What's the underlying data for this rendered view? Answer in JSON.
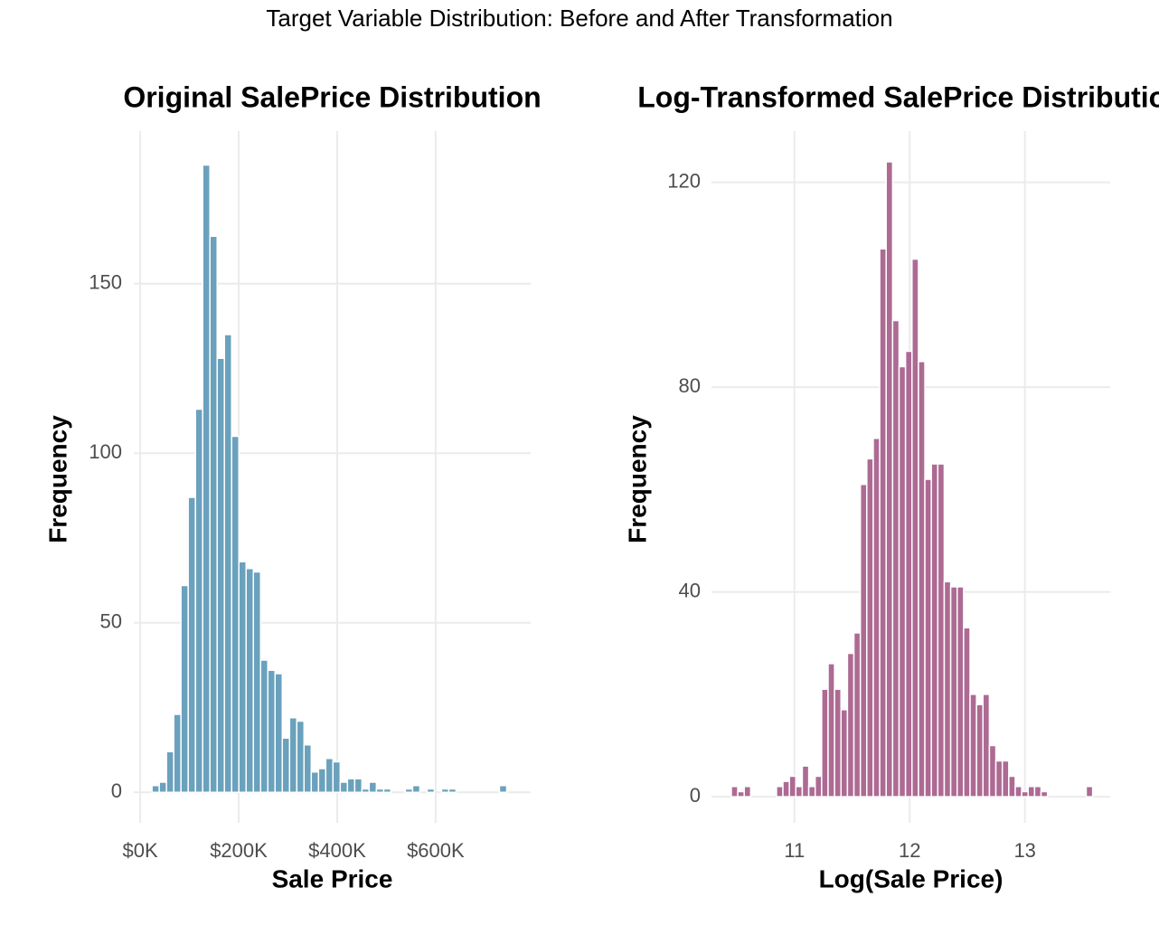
{
  "title": "Target Variable Distribution: Before and After Transformation",
  "chart_data": [
    {
      "type": "histogram",
      "title": "Original SalePrice Distribution",
      "xlabel": "Sale Price",
      "ylabel": "Frequency",
      "color": "#6aa1bd",
      "grid": true,
      "bins": [
        24000,
        38700,
        53400,
        68100,
        82800,
        97500,
        112200,
        126900,
        141600,
        156300,
        171000,
        185700,
        200400,
        215100,
        229800,
        244500,
        259200,
        273900,
        288600,
        303300,
        318000,
        332700,
        347400,
        362100,
        376800,
        391500,
        406200,
        420900,
        435600,
        450300,
        465000,
        479700,
        494400,
        509100,
        523800,
        538500,
        553200,
        567900,
        582600,
        597300,
        612000,
        626700,
        641400,
        656100,
        670800,
        685500,
        700200,
        714900,
        729600,
        744300,
        759000
      ],
      "counts": [
        2,
        3,
        12,
        23,
        61,
        87,
        113,
        185,
        164,
        128,
        135,
        105,
        68,
        66,
        65,
        39,
        36,
        35,
        16,
        22,
        21,
        14,
        6,
        7,
        10,
        9,
        3,
        4,
        4,
        1,
        3,
        1,
        1,
        0,
        0,
        1,
        2,
        0,
        1,
        0,
        1,
        1,
        0,
        0,
        0,
        0,
        0,
        0,
        2,
        0
      ],
      "xlim": [
        -13000,
        793000
      ],
      "xticks": [
        {
          "value": 0,
          "label": "$0K"
        },
        {
          "value": 200000,
          "label": "$200K"
        },
        {
          "value": 400000,
          "label": "$400K"
        },
        {
          "value": 600000,
          "label": "$600K"
        }
      ],
      "ylim": [
        -9,
        195
      ],
      "yticks": [
        0,
        50,
        100,
        150
      ]
    },
    {
      "type": "histogram",
      "title": "Log-Transformed SalePrice Distribution",
      "xlabel": "Log(Sale Price)",
      "ylabel": "Frequency",
      "color": "#ad6a93",
      "grid": true,
      "bins": [
        10.452,
        10.508,
        10.564,
        10.62,
        10.676,
        10.732,
        10.788,
        10.844,
        10.9,
        10.956,
        11.012,
        11.068,
        11.124,
        11.18,
        11.236,
        11.292,
        11.348,
        11.404,
        11.46,
        11.516,
        11.572,
        11.628,
        11.684,
        11.74,
        11.796,
        11.852,
        11.908,
        11.964,
        12.02,
        12.076,
        12.132,
        12.188,
        12.244,
        12.3,
        12.356,
        12.412,
        12.468,
        12.524,
        12.58,
        12.636,
        12.692,
        12.748,
        12.804,
        12.86,
        12.916,
        12.972,
        13.028,
        13.084,
        13.14,
        13.196,
        13.252,
        13.308,
        13.364,
        13.42,
        13.476,
        13.532,
        13.588
      ],
      "counts": [
        2,
        1,
        2,
        0,
        0,
        0,
        0,
        2,
        3,
        4,
        2,
        6,
        2,
        4,
        21,
        26,
        21,
        17,
        28,
        32,
        61,
        66,
        70,
        107,
        124,
        93,
        84,
        87,
        105,
        85,
        62,
        65,
        65,
        42,
        41,
        41,
        33,
        20,
        18,
        20,
        10,
        7,
        7,
        4,
        2,
        1,
        2,
        2,
        1,
        0,
        0,
        0,
        0,
        0,
        0,
        2
      ],
      "xlim": [
        10.28,
        13.74
      ],
      "xticks": [
        11,
        12,
        13
      ],
      "ylim": [
        -5.1,
        130
      ],
      "yticks": [
        0,
        40,
        80,
        120
      ]
    }
  ]
}
